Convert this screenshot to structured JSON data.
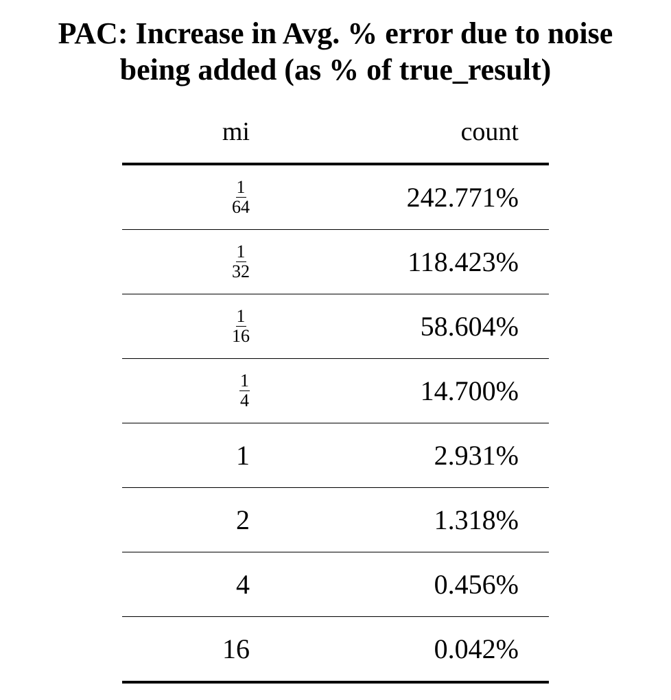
{
  "title": {
    "line1": "PAC: Increase in Avg. % error due to noise",
    "line2": "being added (as % of true_result)"
  },
  "table": {
    "columns": [
      "mi",
      "count"
    ],
    "rows": [
      {
        "mi_num": "1",
        "mi_den": "64",
        "count": "242.771%"
      },
      {
        "mi_num": "1",
        "mi_den": "32",
        "count": "118.423%"
      },
      {
        "mi_num": "1",
        "mi_den": "16",
        "count": "58.604%"
      },
      {
        "mi_num": "1",
        "mi_den": "4",
        "count": "14.700%"
      },
      {
        "mi": "1",
        "count": "2.931%"
      },
      {
        "mi": "2",
        "count": "1.318%"
      },
      {
        "mi": "4",
        "count": "0.456%"
      },
      {
        "mi": "16",
        "count": "0.042%"
      }
    ]
  }
}
